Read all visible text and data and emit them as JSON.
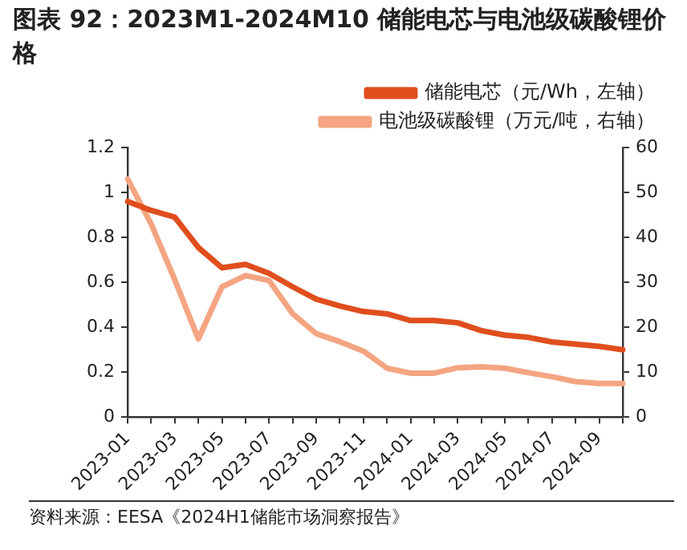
{
  "chart_data": {
    "type": "line",
    "title": "图表 92：2023M1-2024M10 储能电芯与电池级碳酸锂价格",
    "categories": [
      "2023-01",
      null,
      "2023-03",
      null,
      "2023-05",
      null,
      "2023-07",
      null,
      "2023-09",
      null,
      "2023-11",
      null,
      "2024-01",
      null,
      "2024-03",
      null,
      "2024-05",
      null,
      "2024-07",
      null,
      "2024-09",
      null
    ],
    "series": [
      {
        "name": "储能电芯（元/Wh，左轴）",
        "color": "#e04e1e",
        "values": [
          0.96,
          0.92,
          0.89,
          0.755,
          0.665,
          0.68,
          0.64,
          0.58,
          0.525,
          0.495,
          0.47,
          0.46,
          0.43,
          0.43,
          0.42,
          0.385,
          0.365,
          0.355,
          0.335,
          0.325,
          0.315,
          0.3
        ]
      },
      {
        "name": "电池级碳酸锂（万元/吨，右轴）",
        "color": "#f4a582",
        "axis": "y2",
        "values": [
          53,
          43,
          30.6,
          17.4,
          29,
          31.5,
          30.4,
          23,
          18.6,
          16.8,
          14.7,
          10.9,
          9.8,
          9.8,
          11,
          11.2,
          10.9,
          9.9,
          9,
          7.9,
          7.5,
          7.5
        ]
      }
    ],
    "ylim": [
      0,
      1.2
    ],
    "yticks": [
      0,
      0.2,
      0.4,
      0.6,
      0.8,
      1,
      1.2
    ],
    "y2lim": [
      0,
      60
    ],
    "y2ticks": [
      0,
      10,
      20,
      30,
      40,
      50,
      60
    ],
    "legend": "top right",
    "grid": false,
    "marker": "none",
    "line_style": "solid",
    "annotations": [
      "资料来源：EESA《2024H1储能市场洞察报告》"
    ]
  }
}
